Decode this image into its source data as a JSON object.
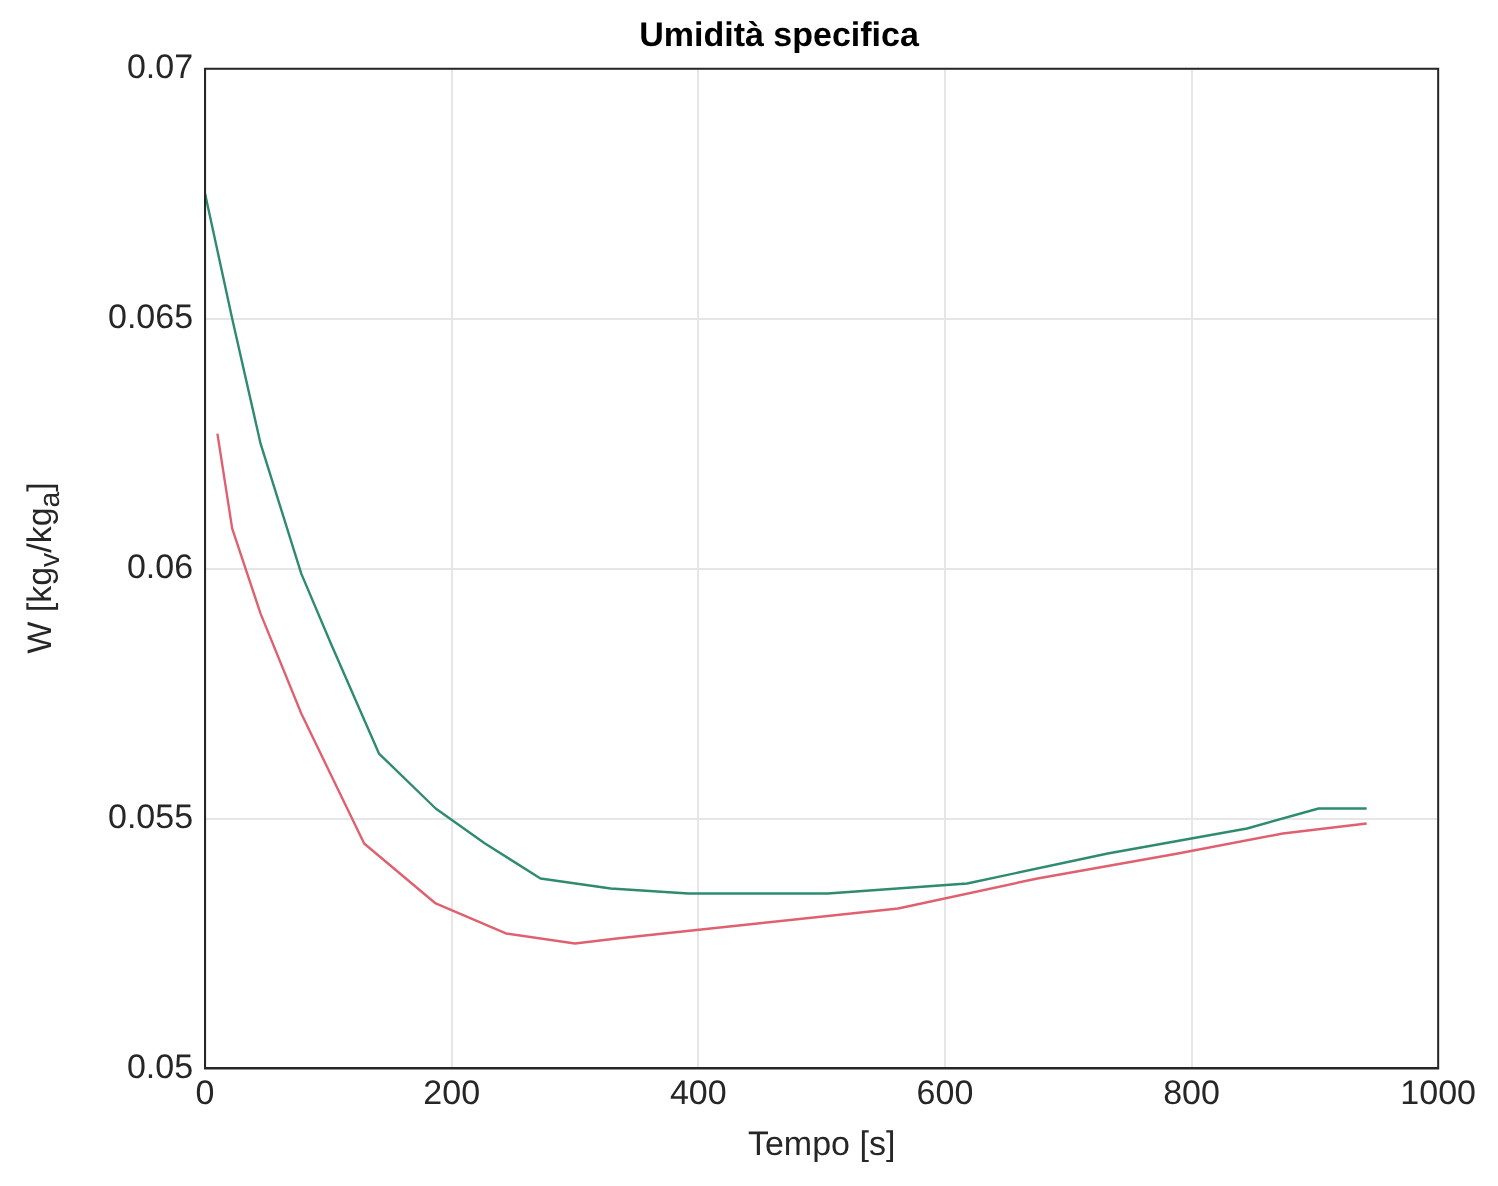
{
  "chart_data": {
    "type": "line",
    "title": "Umidità specifica",
    "xlabel": "Tempo [s]",
    "ylabel": "W [kg$_{v}$/kg$_{a}$]",
    "xlim": [
      0,
      1000
    ],
    "xticks": [
      0,
      200,
      400,
      600,
      800,
      1000
    ],
    "ylim": [
      0.05,
      0.07
    ],
    "yticks": [
      0.05,
      0.055,
      0.06,
      0.065,
      0.07
    ],
    "grid": true,
    "legend": false,
    "marker": "none",
    "line_style": "solid",
    "series": [
      {
        "color": "#2e8b70",
        "x": [
          0,
          22,
          45,
          78,
          102,
          141,
          187,
          227,
          272,
          329,
          392,
          505,
          618,
          732,
          845,
          903,
          942
        ],
        "values": [
          0.0675,
          0.065,
          0.0625,
          0.0599,
          0.0585,
          0.0563,
          0.0552,
          0.0545,
          0.0538,
          0.0536,
          0.0535,
          0.0535,
          0.0537,
          0.0543,
          0.0548,
          0.0552,
          0.0552
        ]
      },
      {
        "color": "#e06070",
        "x": [
          10,
          22,
          45,
          78,
          129,
          187,
          244,
          300,
          334,
          448,
          562,
          675,
          789,
          874,
          942
        ],
        "values": [
          0.0627,
          0.0608,
          0.0591,
          0.0571,
          0.0545,
          0.0533,
          0.0527,
          0.0525,
          0.0526,
          0.0529,
          0.0532,
          0.0538,
          0.0543,
          0.0547,
          0.0549
        ]
      }
    ]
  }
}
